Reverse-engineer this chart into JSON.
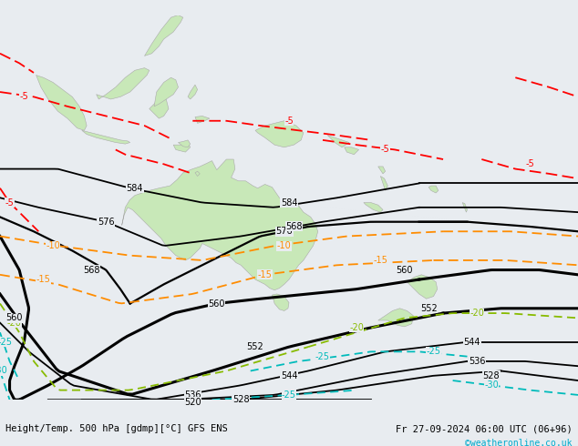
{
  "title_left": "Height/Temp. 500 hPa [gdmp][°C] GFS ENS",
  "title_right": "Fr 27-09-2024 06:00 UTC (06+96)",
  "credit": "©weatheronline.co.uk",
  "bg_ocean": "#e8ecf0",
  "bg_land": "#c8e8b8",
  "bg_aus_land": "#c8e8b8",
  "border_color": "#aaaaaa",
  "title_fontsize": 8,
  "credit_color": "#00aacc",
  "lon_min": 88,
  "lon_max": 208,
  "lat_min": -62,
  "lat_max": 18
}
